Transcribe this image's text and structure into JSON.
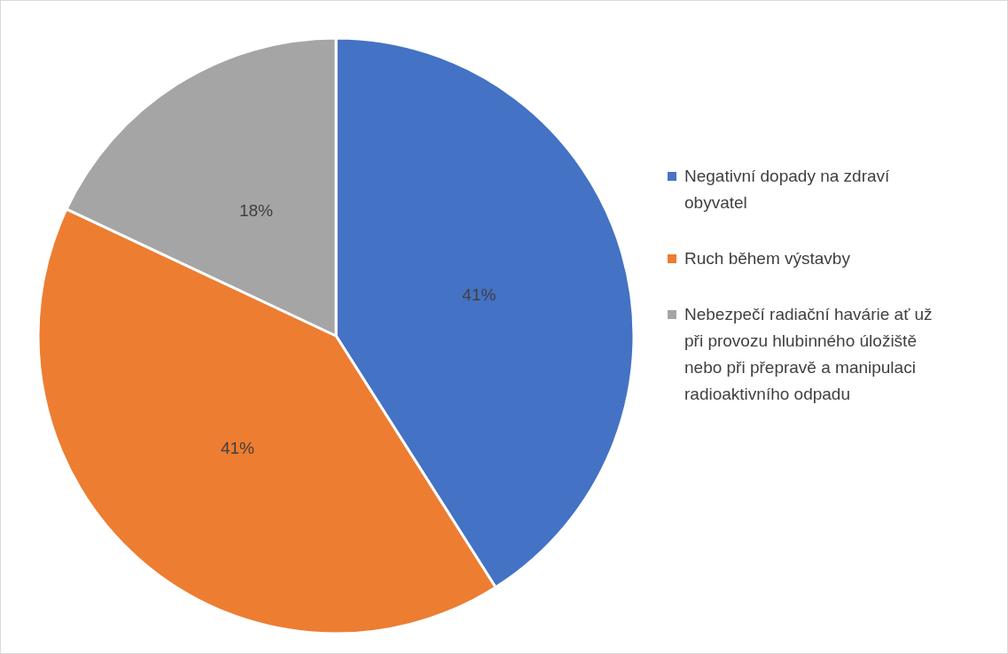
{
  "chart_data": {
    "type": "pie",
    "categories": [
      "Negativní dopady na zdraví obyvatel",
      "Ruch během výstavby",
      "Nebezpečí radiační havárie ať už při provozu hlubinného úložiště nebo při přepravě a manipulaci radioaktivního odpadu"
    ],
    "values": [
      41,
      41,
      18
    ],
    "colors": [
      "#4472c4",
      "#ed7d31",
      "#a5a5a5"
    ],
    "value_labels": [
      "41%",
      "41%",
      "18%"
    ],
    "legend": "right"
  }
}
